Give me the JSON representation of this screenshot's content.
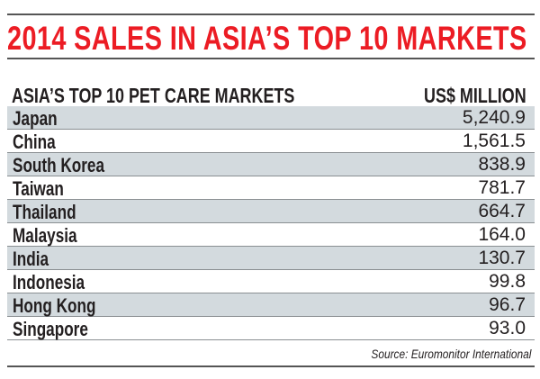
{
  "title": "2014 SALES IN ASIA’S TOP 10 MARKETS",
  "colors": {
    "title": "#ec1c24",
    "row_alt": "#d3dade"
  },
  "chart_data": {
    "type": "table",
    "title": "2014 SALES IN ASIA’S TOP 10 MARKETS",
    "columns": [
      "ASIA’S TOP 10 PET CARE MARKETS",
      "US$ MILLION"
    ],
    "rows": [
      {
        "market": "Japan",
        "value": "5,240.9"
      },
      {
        "market": "China",
        "value": "1,561.5"
      },
      {
        "market": "South Korea",
        "value": "838.9"
      },
      {
        "market": "Taiwan",
        "value": "781.7"
      },
      {
        "market": "Thailand",
        "value": "664.7"
      },
      {
        "market": "Malaysia",
        "value": "164.0"
      },
      {
        "market": "India",
        "value": "130.7"
      },
      {
        "market": "Indonesia",
        "value": "99.8"
      },
      {
        "market": "Hong Kong",
        "value": "96.7"
      },
      {
        "market": "Singapore",
        "value": "93.0"
      }
    ],
    "source": "Source: Euromonitor International"
  }
}
